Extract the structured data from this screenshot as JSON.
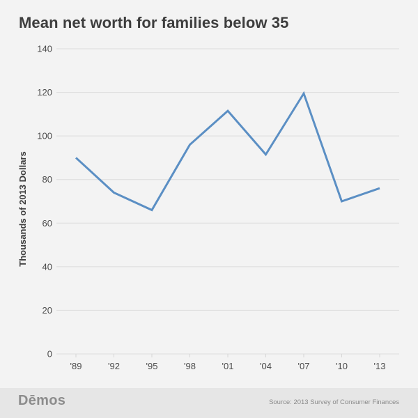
{
  "header": {
    "title": "Mean net worth for families below 35"
  },
  "footer": {
    "logo": "Dēmos",
    "source": "Source: 2013 Survey of Consumer Finances"
  },
  "colors": {
    "line": "#5b8fc4",
    "grid": "#dcdcdc",
    "background": "#f3f3f3",
    "footer": "#e6e6e6"
  },
  "chart_data": {
    "type": "line",
    "title": "Mean net worth for families below 35",
    "xlabel": "",
    "ylabel": "Thousands of 2013 Dollars",
    "categories": [
      "'89",
      "'92",
      "'95",
      "'98",
      "'01",
      "'04",
      "'07",
      "'10",
      "'13"
    ],
    "series": [
      {
        "name": "Mean net worth",
        "values": [
          90,
          74,
          66,
          96,
          111.5,
          91.5,
          119.5,
          70,
          76
        ]
      }
    ],
    "yticks": [
      0,
      20,
      40,
      60,
      80,
      100,
      120,
      140
    ],
    "ylim": [
      0,
      140
    ],
    "grid": true,
    "legend": "none"
  }
}
